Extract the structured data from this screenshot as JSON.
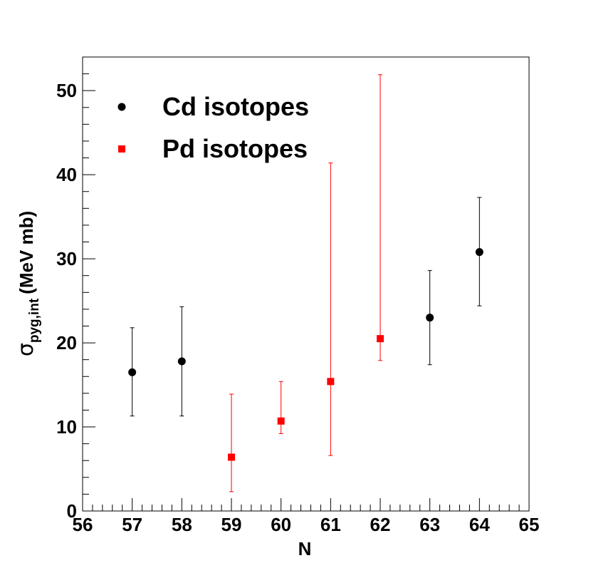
{
  "chart_data": {
    "type": "scatter",
    "xlabel": "N",
    "ylabel": {
      "symbol": "σ",
      "subscript": "pyg,int",
      "unit": "(MeV mb)"
    },
    "xlim": [
      56,
      65
    ],
    "ylim": [
      0,
      54
    ],
    "x_ticks": [
      56,
      57,
      58,
      59,
      60,
      61,
      62,
      63,
      64,
      65
    ],
    "y_ticks": [
      0,
      10,
      20,
      30,
      40,
      50
    ],
    "grid": false,
    "legend_position": "top-left",
    "series": [
      {
        "name": "Cd isotopes",
        "color": "#000000",
        "marker": "circle",
        "points": [
          {
            "x": 57,
            "y": 16.5,
            "ylow": 11.3,
            "yhigh": 21.8
          },
          {
            "x": 58,
            "y": 17.8,
            "ylow": 11.3,
            "yhigh": 24.3
          },
          {
            "x": 63,
            "y": 23.0,
            "ylow": 17.4,
            "yhigh": 28.6
          },
          {
            "x": 64,
            "y": 30.8,
            "ylow": 24.4,
            "yhigh": 37.3
          }
        ]
      },
      {
        "name": "Pd isotopes",
        "color": "#ff0000",
        "marker": "square",
        "points": [
          {
            "x": 59,
            "y": 6.4,
            "ylow": 2.3,
            "yhigh": 13.9
          },
          {
            "x": 60,
            "y": 10.7,
            "ylow": 9.2,
            "yhigh": 15.4
          },
          {
            "x": 61,
            "y": 15.4,
            "ylow": 6.6,
            "yhigh": 41.4
          },
          {
            "x": 62,
            "y": 20.5,
            "ylow": 17.9,
            "yhigh": 51.9
          }
        ]
      }
    ]
  }
}
